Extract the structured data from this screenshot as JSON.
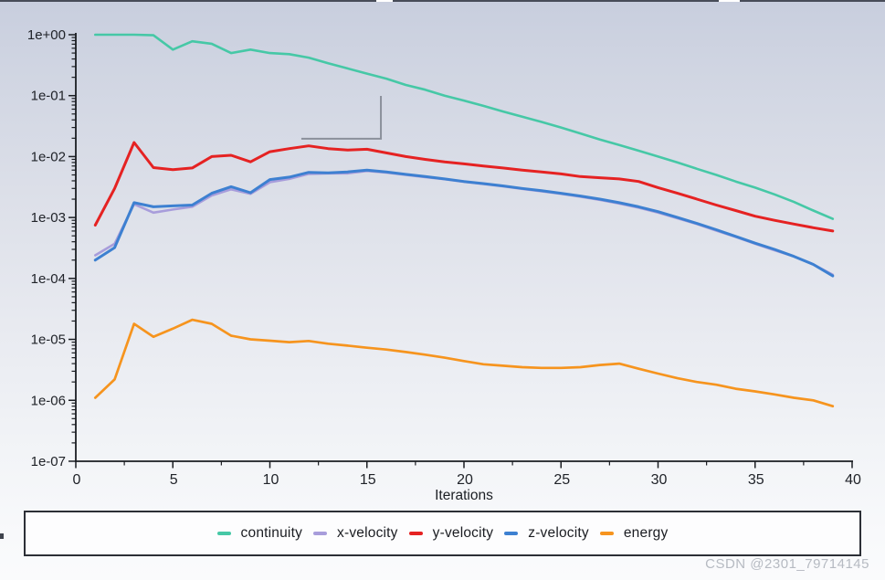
{
  "watermark": "CSDN @2301_79714145",
  "colors": {
    "background_top": "#c8cede",
    "background_bottom": "#fafbfc",
    "axis": "#1a1d22",
    "tick_text": "#202329",
    "legend_border": "#2c2f36",
    "legend_fill": "#fdfdfe",
    "watermark_text": "#b6bac2",
    "corner_mark": "#8b909b"
  },
  "chart_data": {
    "type": "line",
    "title": "",
    "xlabel": "Iterations",
    "ylabel": "",
    "x_scale": "linear",
    "y_scale": "log",
    "xlim": [
      0,
      40
    ],
    "ylim": [
      1e-07,
      1
    ],
    "grid": false,
    "legend_position": "bottom",
    "x_ticks": [
      "0",
      "5",
      "10",
      "15",
      "20",
      "25",
      "30",
      "35",
      "40"
    ],
    "x_tick_values": [
      0,
      5,
      10,
      15,
      20,
      25,
      30,
      35,
      40
    ],
    "x_minor_tick_step": 2.5,
    "y_ticks": [
      "1e+00",
      "1e-01",
      "1e-02",
      "1e-03",
      "1e-04",
      "1e-05",
      "1e-06",
      "1e-07"
    ],
    "y_tick_values": [
      1,
      0.1,
      0.01,
      0.001,
      0.0001,
      1e-05,
      1e-06,
      1e-07
    ],
    "x": [
      1,
      2,
      3,
      4,
      5,
      6,
      7,
      8,
      9,
      10,
      11,
      12,
      13,
      14,
      15,
      16,
      17,
      18,
      19,
      20,
      21,
      22,
      23,
      24,
      25,
      26,
      27,
      28,
      29,
      30,
      31,
      32,
      33,
      34,
      35,
      36,
      37,
      38,
      39
    ],
    "series": [
      {
        "name": "continuity",
        "color": "#46c8a6",
        "values": [
          1.0,
          1.0,
          1.0,
          0.98,
          0.57,
          0.78,
          0.71,
          0.5,
          0.57,
          0.5,
          0.48,
          0.42,
          0.34,
          0.28,
          0.23,
          0.19,
          0.15,
          0.125,
          0.1,
          0.083,
          0.068,
          0.055,
          0.045,
          0.037,
          0.03,
          0.024,
          0.019,
          0.0155,
          0.0125,
          0.01,
          0.008,
          0.0063,
          0.005,
          0.0039,
          0.0031,
          0.0024,
          0.0018,
          0.0013,
          0.00095
        ]
      },
      {
        "name": "x-velocity",
        "color": "#a89ddb",
        "values": [
          0.00024,
          0.00037,
          0.00165,
          0.0012,
          0.00135,
          0.0015,
          0.0023,
          0.0029,
          0.00245,
          0.0038,
          0.0043,
          0.0052,
          0.0053,
          0.0053,
          0.0058,
          0.00545,
          0.005,
          0.0046,
          0.00425,
          0.00385,
          0.00355,
          0.00325,
          0.00295,
          0.0027,
          0.00245,
          0.0022,
          0.00195,
          0.0017,
          0.00145,
          0.0012,
          0.00097,
          0.00078,
          0.00061,
          0.00048,
          0.00037,
          0.00029,
          0.00023,
          0.00017,
          0.000115
        ]
      },
      {
        "name": "y-velocity",
        "color": "#e52222",
        "values": [
          0.00075,
          0.003,
          0.017,
          0.0066,
          0.0061,
          0.0065,
          0.01,
          0.0105,
          0.0082,
          0.012,
          0.0135,
          0.015,
          0.0135,
          0.0128,
          0.0132,
          0.0115,
          0.01,
          0.009,
          0.0082,
          0.0076,
          0.007,
          0.0065,
          0.006,
          0.0056,
          0.0052,
          0.0047,
          0.0045,
          0.0043,
          0.0039,
          0.0031,
          0.0025,
          0.002,
          0.0016,
          0.0013,
          0.00105,
          0.0009,
          0.00078,
          0.00068,
          0.0006
        ]
      },
      {
        "name": "z-velocity",
        "color": "#3d80d1",
        "values": [
          0.0002,
          0.00032,
          0.00175,
          0.0015,
          0.00155,
          0.0016,
          0.0025,
          0.0032,
          0.00255,
          0.0042,
          0.0046,
          0.0055,
          0.0054,
          0.0056,
          0.006,
          0.0056,
          0.0051,
          0.0047,
          0.0043,
          0.0039,
          0.0036,
          0.0033,
          0.003,
          0.00275,
          0.0025,
          0.00225,
          0.002,
          0.00175,
          0.0015,
          0.00125,
          0.001,
          0.0008,
          0.00063,
          0.00049,
          0.00038,
          0.0003,
          0.00023,
          0.00017,
          0.00011
        ]
      },
      {
        "name": "energy",
        "color": "#f6941e",
        "values": [
          1.1e-06,
          2.2e-06,
          1.8e-05,
          1.1e-05,
          1.5e-05,
          2.1e-05,
          1.8e-05,
          1.15e-05,
          1e-05,
          9.5e-06,
          9e-06,
          9.4e-06,
          8.5e-06,
          7.9e-06,
          7.3e-06,
          6.8e-06,
          6.2e-06,
          5.6e-06,
          5e-06,
          4.4e-06,
          3.9e-06,
          3.7e-06,
          3.5e-06,
          3.4e-06,
          3.4e-06,
          3.5e-06,
          3.8e-06,
          4e-06,
          3.3e-06,
          2.75e-06,
          2.3e-06,
          2e-06,
          1.8e-06,
          1.55e-06,
          1.4e-06,
          1.25e-06,
          1.1e-06,
          1e-06,
          8e-07
        ]
      }
    ],
    "annotations": [
      {
        "type": "corner_bracket",
        "description": "gray L-shaped partial rectangle mark on plot",
        "points_data": [
          [
            11.62,
            0.0196
          ],
          [
            15.72,
            0.0196
          ],
          [
            15.72,
            0.099
          ]
        ]
      }
    ]
  }
}
